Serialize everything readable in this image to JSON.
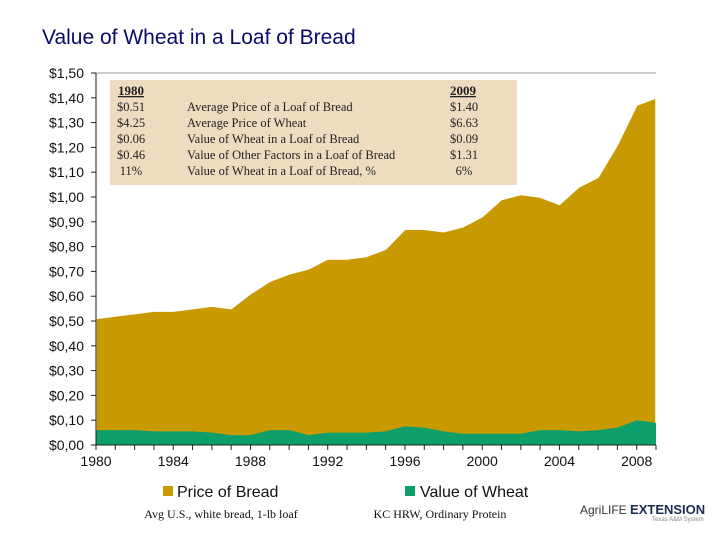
{
  "chart_data": {
    "type": "area",
    "title": "Value of Wheat in a Loaf of Bread",
    "x": [
      1980,
      1981,
      1982,
      1983,
      1984,
      1985,
      1986,
      1987,
      1988,
      1989,
      1990,
      1991,
      1992,
      1993,
      1994,
      1995,
      1996,
      1997,
      1998,
      1999,
      2000,
      2001,
      2002,
      2003,
      2004,
      2005,
      2006,
      2007,
      2008,
      2009
    ],
    "series": [
      {
        "name": "Price of Bread",
        "color": "#c89a00",
        "values": [
          0.51,
          0.52,
          0.53,
          0.54,
          0.54,
          0.55,
          0.56,
          0.55,
          0.61,
          0.66,
          0.69,
          0.71,
          0.75,
          0.75,
          0.76,
          0.79,
          0.87,
          0.87,
          0.86,
          0.88,
          0.92,
          0.99,
          1.01,
          1.0,
          0.97,
          1.04,
          1.08,
          1.21,
          1.37,
          1.4
        ]
      },
      {
        "name": "Value of Wheat",
        "color": "#0e9e6a",
        "values": [
          0.06,
          0.06,
          0.06,
          0.055,
          0.055,
          0.055,
          0.05,
          0.04,
          0.04,
          0.06,
          0.06,
          0.04,
          0.05,
          0.05,
          0.05,
          0.055,
          0.075,
          0.07,
          0.055,
          0.045,
          0.045,
          0.045,
          0.045,
          0.06,
          0.06,
          0.055,
          0.06,
          0.07,
          0.1,
          0.09
        ]
      }
    ],
    "ylim": [
      0,
      1.5
    ],
    "y_ticks": [
      "$0,00",
      "$0,10",
      "$0,20",
      "$0,30",
      "$0,40",
      "$0,50",
      "$0,60",
      "$0,70",
      "$0,80",
      "$0,90",
      "$1,00",
      "$1,10",
      "$1,20",
      "$1,30",
      "$1,40",
      "$1,50"
    ],
    "x_ticks": [
      {
        "value": 1980,
        "label": "1980"
      },
      {
        "value": 1984,
        "label": "1984"
      },
      {
        "value": 1988,
        "label": "1988"
      },
      {
        "value": 1992,
        "label": "1992"
      },
      {
        "value": 1996,
        "label": "1996"
      },
      {
        "value": 2000,
        "label": "2000"
      },
      {
        "value": 2004,
        "label": "2004"
      },
      {
        "value": 2008,
        "label": "2008"
      }
    ],
    "grid": false,
    "legend": [
      {
        "label": "Price of Bread",
        "color": "#c89a00",
        "note": "Avg U.S., white bread, 1-lb loaf"
      },
      {
        "label": "Value of Wheat",
        "color": "#0e9e6a",
        "note": "KC HRW, Ordinary Protein"
      }
    ],
    "annotation_table": {
      "col_1980": "1980",
      "col_2009": "2009",
      "rows": [
        {
          "v1980": "$0.51",
          "label": "Average Price of a Loaf of Bread",
          "v2009": "$1.40"
        },
        {
          "v1980": "$4.25",
          "label": "Average Price of Wheat",
          "v2009": "$6.63"
        },
        {
          "v1980": "$0.06",
          "label": "Value of Wheat in a Loaf of Bread",
          "v2009": "$0.09"
        },
        {
          "v1980": "$0.46",
          "label": "Value of Other Factors in a Loaf of Bread",
          "v2009": "$1.31"
        },
        {
          "v1980": "11%",
          "label": "Value of Wheat in a Loaf of Bread, %",
          "v2009": "6%"
        }
      ]
    }
  },
  "logo": {
    "brand": "AgriLIFE",
    "name": "EXTENSION",
    "tagline": "Texas A&M System"
  }
}
